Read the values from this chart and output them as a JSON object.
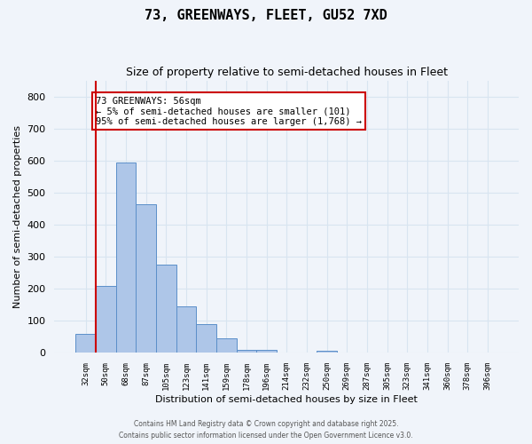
{
  "title1": "73, GREENWAYS, FLEET, GU52 7XD",
  "title2": "Size of property relative to semi-detached houses in Fleet",
  "xlabel": "Distribution of semi-detached houses by size in Fleet",
  "ylabel": "Number of semi-detached properties",
  "categories": [
    "32sqm",
    "50sqm",
    "68sqm",
    "87sqm",
    "105sqm",
    "123sqm",
    "141sqm",
    "159sqm",
    "178sqm",
    "196sqm",
    "214sqm",
    "232sqm",
    "250sqm",
    "269sqm",
    "287sqm",
    "305sqm",
    "323sqm",
    "341sqm",
    "360sqm",
    "378sqm",
    "396sqm"
  ],
  "values": [
    60,
    210,
    595,
    465,
    275,
    145,
    90,
    45,
    10,
    10,
    0,
    0,
    8,
    0,
    0,
    0,
    0,
    0,
    0,
    0,
    0
  ],
  "bar_color": "#aec6e8",
  "bar_edge_color": "#5b8fc9",
  "annotation_text": "73 GREENWAYS: 56sqm\n← 5% of semi-detached houses are smaller (101)\n95% of semi-detached houses are larger (1,768) →",
  "annotation_box_color": "#ffffff",
  "annotation_box_edge_color": "#cc0000",
  "vline_color": "#cc0000",
  "ylim": [
    0,
    850
  ],
  "yticks": [
    0,
    100,
    200,
    300,
    400,
    500,
    600,
    700,
    800
  ],
  "grid_color": "#d8e4f0",
  "background_color": "#f0f4fa",
  "footnote1": "Contains HM Land Registry data © Crown copyright and database right 2025.",
  "footnote2": "Contains public sector information licensed under the Open Government Licence v3.0."
}
